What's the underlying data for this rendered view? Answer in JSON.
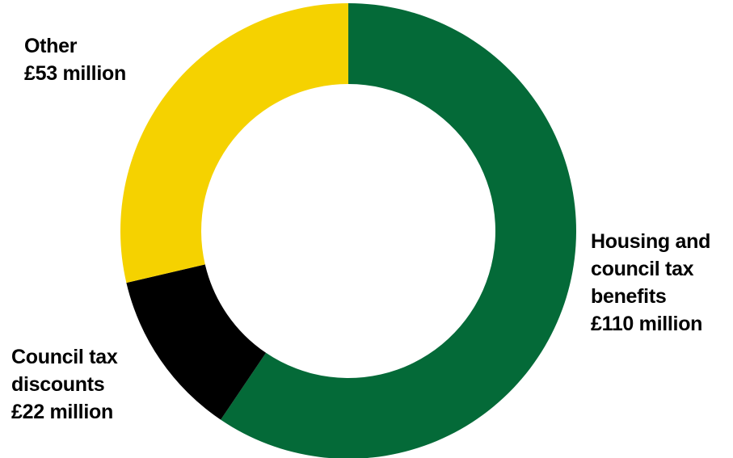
{
  "chart_data": {
    "type": "pie",
    "donut": true,
    "title": "",
    "slices": [
      {
        "key": "housing",
        "label_lines": [
          "Housing and",
          "council tax",
          "benefits"
        ],
        "value_label": "£110 million",
        "value": 110,
        "color": "#046a38"
      },
      {
        "key": "discounts",
        "label_lines": [
          "Council tax",
          "discounts"
        ],
        "value_label": "£22 million",
        "value": 22,
        "color": "#000000"
      },
      {
        "key": "other",
        "label_lines": [
          "Other"
        ],
        "value_label": "£53 million",
        "value": 53,
        "color": "#f5d200"
      }
    ],
    "start_angle": "12 o'clock",
    "direction": "clockwise",
    "legend": "none",
    "units": "£ million"
  }
}
